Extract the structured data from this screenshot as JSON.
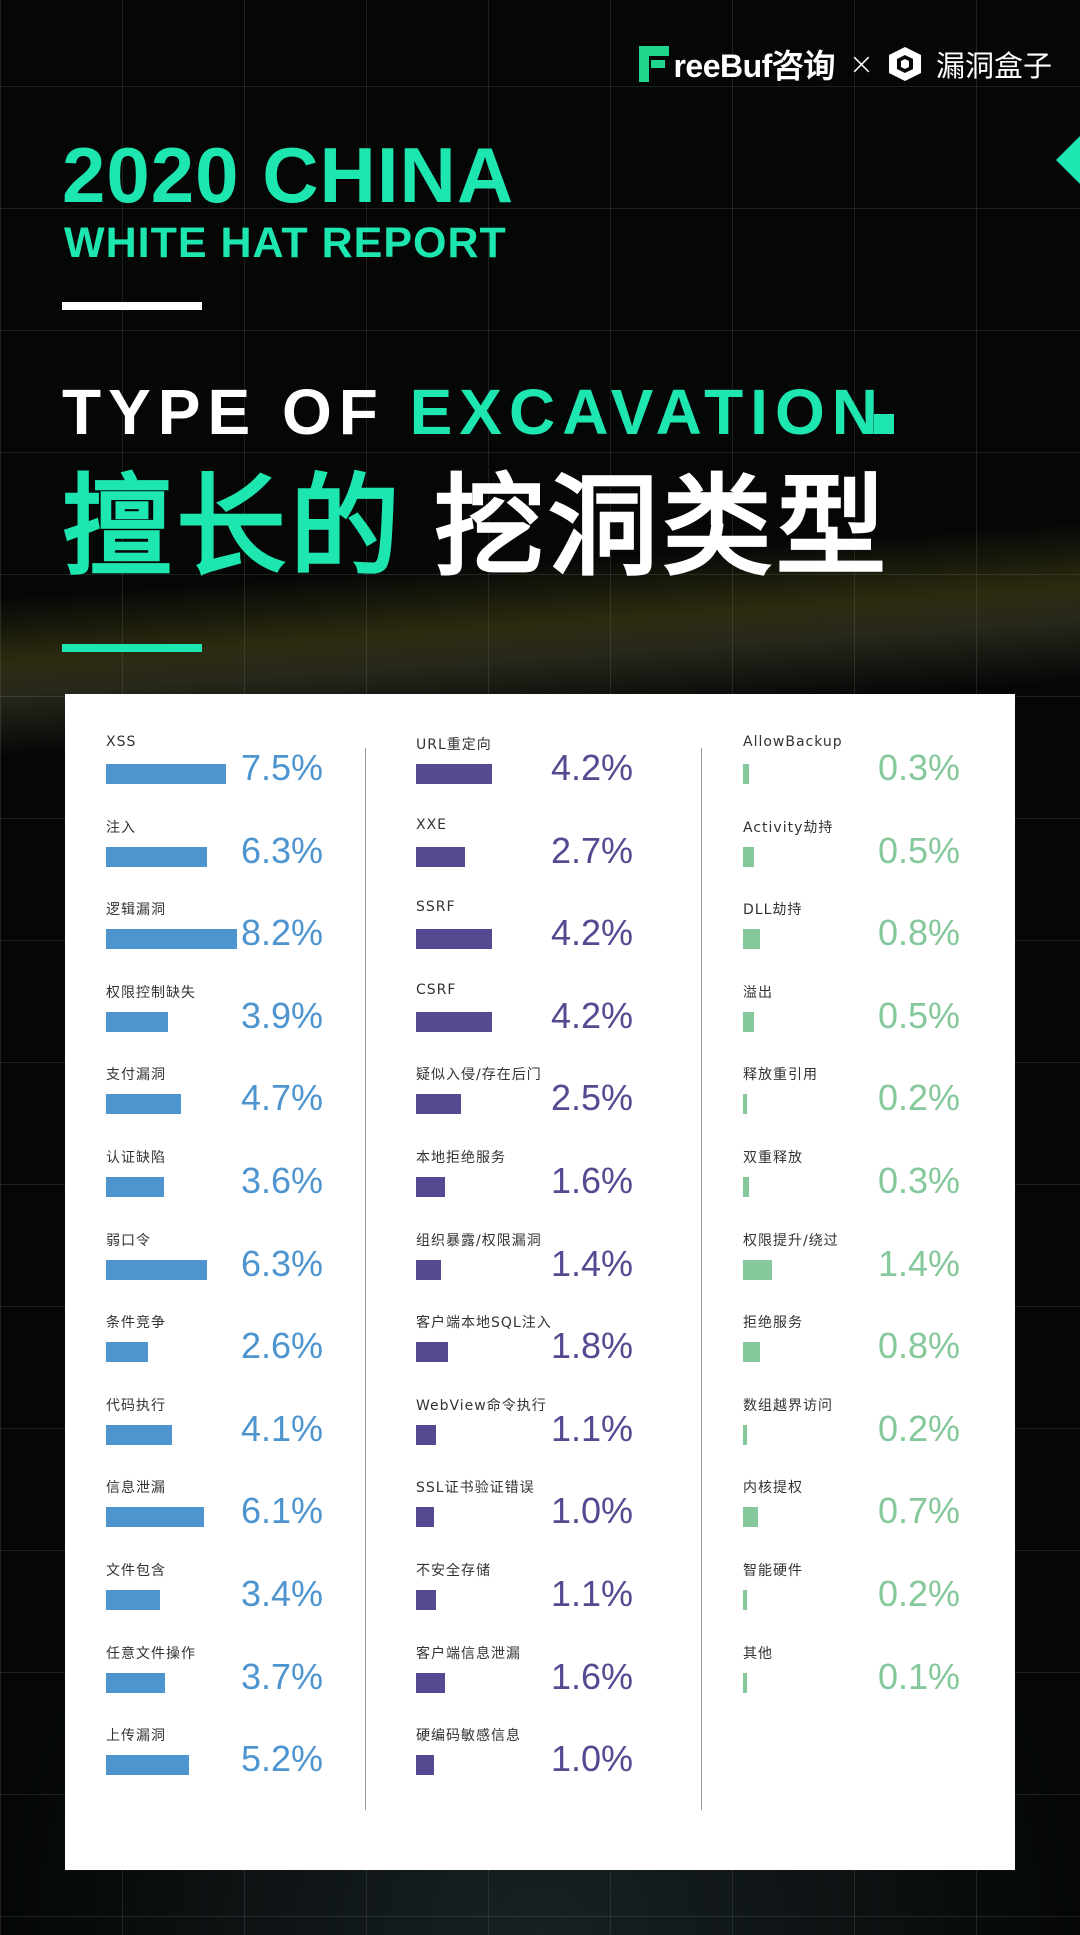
{
  "header": {
    "logo_left": "reeBuf咨询",
    "logo_x": "×",
    "logo_right": "漏洞盒子",
    "title_line1": "2020 CHINA",
    "title_line2": "WHITE HAT REPORT",
    "type_white": "TYPE OF ",
    "type_green": "EXCAVATION",
    "cn_green": "擅长的",
    "cn_white": "挖洞类型"
  },
  "colors": {
    "accent": "#1ee6b1",
    "col1": "#4e95d0",
    "col2": "#554a91",
    "col3": "#84c89b"
  },
  "chart_data": {
    "type": "bar",
    "title": "",
    "columns": [
      {
        "color": "#4e95d0",
        "items": [
          {
            "label": "XSS",
            "value": 7.5,
            "display": "7.5%"
          },
          {
            "label": "注入",
            "value": 6.3,
            "display": "6.3%"
          },
          {
            "label": "逻辑漏洞",
            "value": 8.2,
            "display": "8.2%"
          },
          {
            "label": "权限控制缺失",
            "value": 3.9,
            "display": "3.9%"
          },
          {
            "label": "支付漏洞",
            "value": 4.7,
            "display": "4.7%"
          },
          {
            "label": "认证缺陷",
            "value": 3.6,
            "display": "3.6%"
          },
          {
            "label": "弱口令",
            "value": 6.3,
            "display": "6.3%"
          },
          {
            "label": "条件竞争",
            "value": 2.6,
            "display": "2.6%"
          },
          {
            "label": "代码执行",
            "value": 4.1,
            "display": "4.1%"
          },
          {
            "label": "信息泄漏",
            "value": 6.1,
            "display": "6.1%"
          },
          {
            "label": "文件包含",
            "value": 3.4,
            "display": "3.4%"
          },
          {
            "label": "任意文件操作",
            "value": 3.7,
            "display": "3.7%"
          },
          {
            "label": "上传漏洞",
            "value": 5.2,
            "display": "5.2%"
          }
        ]
      },
      {
        "color": "#554a91",
        "items": [
          {
            "label": "URL重定向",
            "value": 4.2,
            "display": "4.2%"
          },
          {
            "label": "XXE",
            "value": 2.7,
            "display": "2.7%"
          },
          {
            "label": "SSRF",
            "value": 4.2,
            "display": "4.2%"
          },
          {
            "label": "CSRF",
            "value": 4.2,
            "display": "4.2%"
          },
          {
            "label": "疑似入侵/存在后门",
            "value": 2.5,
            "display": "2.5%"
          },
          {
            "label": "本地拒绝服务",
            "value": 1.6,
            "display": "1.6%"
          },
          {
            "label": "组织暴露/权限漏洞",
            "value": 1.4,
            "display": "1.4%"
          },
          {
            "label": "客户端本地SQL注入",
            "value": 1.8,
            "display": "1.8%"
          },
          {
            "label": "WebView命令执行",
            "value": 1.1,
            "display": "1.1%"
          },
          {
            "label": "SSL证书验证错误",
            "value": 1.0,
            "display": "1.0%"
          },
          {
            "label": "不安全存储",
            "value": 1.1,
            "display": "1.1%"
          },
          {
            "label": "客户端信息泄漏",
            "value": 1.6,
            "display": "1.6%"
          },
          {
            "label": "硬编码敏感信息",
            "value": 1.0,
            "display": "1.0%"
          }
        ]
      },
      {
        "color": "#84c89b",
        "items": [
          {
            "label": "AllowBackup",
            "value": 0.3,
            "display": "0.3%"
          },
          {
            "label": "Activity劫持",
            "value": 0.5,
            "display": "0.5%"
          },
          {
            "label": "DLL劫持",
            "value": 0.8,
            "display": "0.8%"
          },
          {
            "label": "溢出",
            "value": 0.5,
            "display": "0.5%"
          },
          {
            "label": "释放重引用",
            "value": 0.2,
            "display": "0.2%"
          },
          {
            "label": "双重释放",
            "value": 0.3,
            "display": "0.3%"
          },
          {
            "label": "权限提升/绕过",
            "value": 1.4,
            "display": "1.4%"
          },
          {
            "label": "拒绝服务",
            "value": 0.8,
            "display": "0.8%"
          },
          {
            "label": "数组越界访问",
            "value": 0.2,
            "display": "0.2%"
          },
          {
            "label": "内核提权",
            "value": 0.7,
            "display": "0.7%"
          },
          {
            "label": "智能硬件",
            "value": 0.2,
            "display": "0.2%"
          },
          {
            "label": "其他",
            "value": 0.1,
            "display": "0.1%"
          }
        ]
      }
    ]
  }
}
